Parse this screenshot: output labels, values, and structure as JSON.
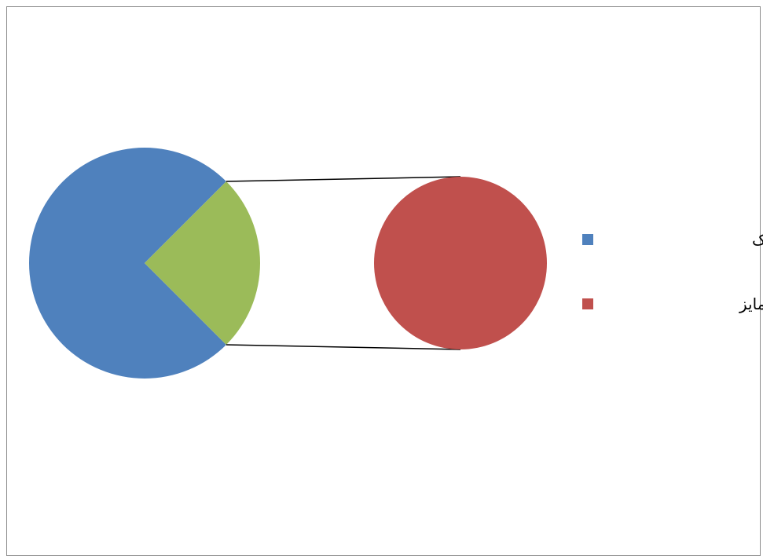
{
  "chart_data": {
    "type": "pie",
    "subtype": "pie-of-pie",
    "title": "",
    "series": [
      {
        "name": "",
        "categories": [
          "چالش های مشترک",
          "چالش های متمایز"
        ],
        "values": [
          75,
          25
        ],
        "colors": [
          "#4F81BD",
          "#C0504D"
        ]
      }
    ],
    "secondary_plot": {
      "source_slice_color": "#9BBB59",
      "secondary_color": "#C0504D",
      "secondary_values": [
        25
      ]
    },
    "legend": {
      "placement": "right",
      "entries": [
        {
          "label": "چالش های مشترک",
          "color": "#4F81BD"
        },
        {
          "label": "چالش های متمایز",
          "color": "#C0504D"
        }
      ]
    }
  }
}
